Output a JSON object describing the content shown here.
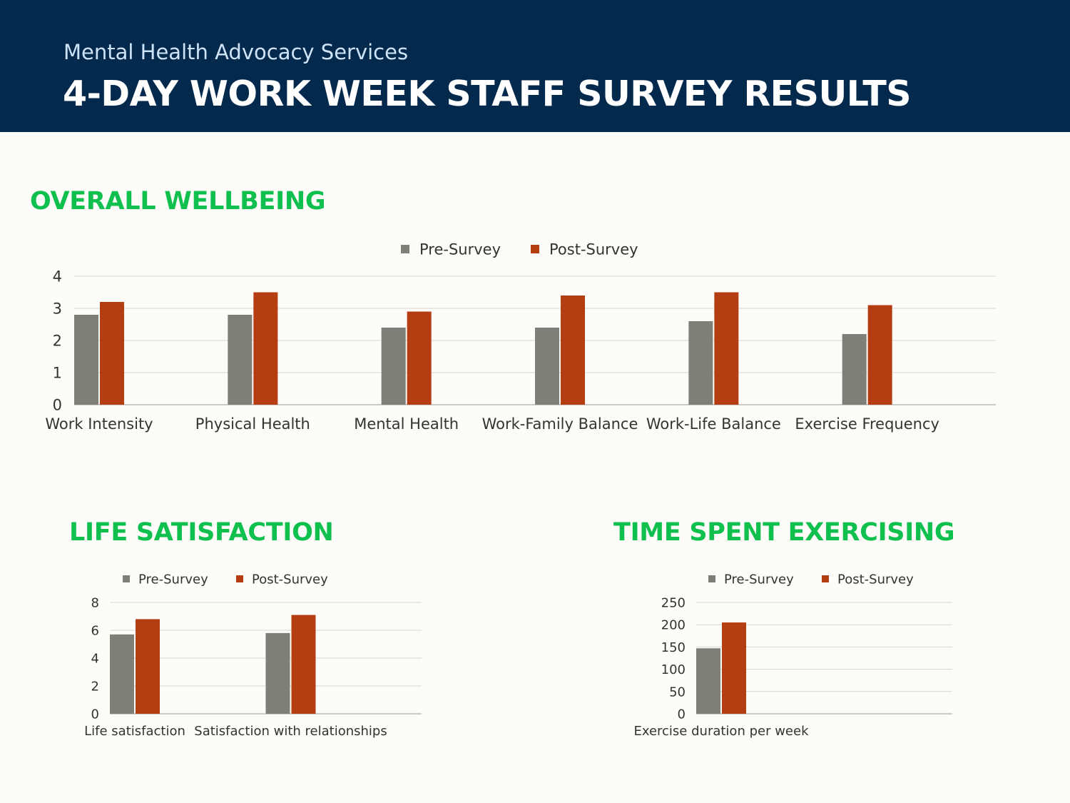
{
  "header": {
    "org": "Mental Health Advocacy Services",
    "title": "4-DAY WORK WEEK STAFF SURVEY RESULTS"
  },
  "colors": {
    "pre": "#7F7F78",
    "post": "#B53D12",
    "accent": "#10C04F",
    "header_bg": "#03294D"
  },
  "legend": {
    "pre": "Pre-Survey",
    "post": "Post-Survey"
  },
  "chart_data": [
    {
      "type": "bar",
      "title": "OVERALL WELLBEING",
      "categories": [
        "Work Intensity",
        "Physical Health",
        "Mental Health",
        "Work-Family Balance",
        "Work-Life Balance",
        "Exercise Frequency"
      ],
      "series": [
        {
          "name": "Pre-Survey",
          "values": [
            2.8,
            2.8,
            2.4,
            2.4,
            2.6,
            2.2
          ]
        },
        {
          "name": "Post-Survey",
          "values": [
            3.2,
            3.5,
            2.9,
            3.4,
            3.5,
            3.1
          ]
        }
      ],
      "ylim": [
        0,
        4
      ],
      "yticks": [
        0,
        1,
        2,
        3,
        4
      ],
      "grid": true,
      "legend": "top-center"
    },
    {
      "type": "bar",
      "title": "LIFE SATISFACTION",
      "categories": [
        "Life satisfaction",
        "Satisfaction with relationships"
      ],
      "series": [
        {
          "name": "Pre-Survey",
          "values": [
            5.7,
            5.8
          ]
        },
        {
          "name": "Post-Survey",
          "values": [
            6.8,
            7.1
          ]
        }
      ],
      "ylim": [
        0,
        8
      ],
      "yticks": [
        0,
        2,
        4,
        6,
        8
      ],
      "grid": true,
      "legend": "top-center"
    },
    {
      "type": "bar",
      "title": "TIME SPENT EXERCISING",
      "categories": [
        "Exercise duration per week"
      ],
      "series": [
        {
          "name": "Pre-Survey",
          "values": [
            147
          ]
        },
        {
          "name": "Post-Survey",
          "values": [
            205
          ]
        }
      ],
      "ylim": [
        0,
        250
      ],
      "yticks": [
        0,
        50,
        100,
        150,
        200,
        250
      ],
      "grid": true,
      "legend": "top-center"
    }
  ]
}
